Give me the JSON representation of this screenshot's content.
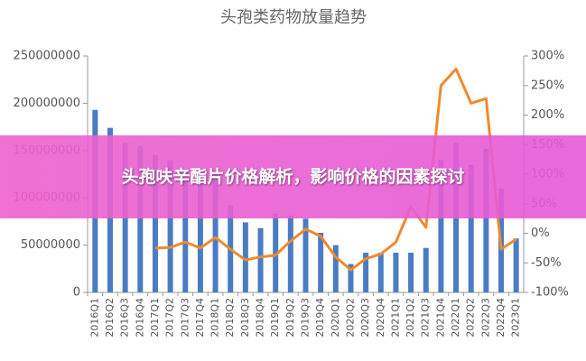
{
  "chart_data": {
    "type": "bar-line",
    "title": "头孢类药物放量趋势",
    "categories": [
      "2016Q1",
      "2016Q2",
      "2016Q3",
      "2016Q4",
      "2017Q1",
      "2017Q2",
      "2017Q3",
      "2017Q4",
      "2018Q1",
      "2018Q2",
      "2018Q3",
      "2018Q4",
      "2019Q1",
      "2019Q2",
      "2019Q3",
      "2019Q4",
      "2020Q1",
      "2020Q2",
      "2020Q3",
      "2020Q4",
      "2021Q1",
      "2021Q2",
      "2021Q3",
      "2021Q4",
      "2022Q1",
      "2022Q2",
      "2022Q3",
      "2022Q4",
      "2023Q1"
    ],
    "series": [
      {
        "type": "bar",
        "color": "#4a7cc4",
        "values": [
          193000000,
          174000000,
          158000000,
          155000000,
          145000000,
          140000000,
          130000000,
          120000000,
          130000000,
          92000000,
          74000000,
          68000000,
          83000000,
          81000000,
          78000000,
          63000000,
          50000000,
          30000000,
          42000000,
          42000000,
          42000000,
          42000000,
          47000000,
          140000000,
          158000000,
          135000000,
          152000000,
          110000000,
          57000000
        ]
      },
      {
        "type": "line",
        "axis": "y2",
        "color": "#ef8a2e",
        "values": [
          null,
          null,
          null,
          null,
          -25,
          -24,
          -15,
          -25,
          -7,
          -27,
          -45,
          -40,
          -37,
          -13,
          7,
          -5,
          -40,
          -62,
          -43,
          -35,
          -15,
          45,
          10,
          250,
          278,
          220,
          228,
          -27,
          -10
        ]
      }
    ],
    "ylim": [
      0,
      250000000
    ],
    "yticks": [
      0,
      50000000,
      100000000,
      150000000,
      200000000,
      250000000
    ],
    "y2lim": [
      -100,
      300
    ],
    "y2ticks": [
      {
        "value": -100,
        "label": "-100%"
      },
      {
        "value": -50,
        "label": "-50%"
      },
      {
        "value": 0,
        "label": "0%"
      },
      {
        "value": 50,
        "label": "50%"
      },
      {
        "value": 100,
        "label": "100%"
      },
      {
        "value": 150,
        "label": "150%"
      },
      {
        "value": 200,
        "label": "200%"
      },
      {
        "value": 250,
        "label": "250%"
      },
      {
        "value": 300,
        "label": "300%"
      }
    ],
    "grid": false
  },
  "banner": {
    "text": "头孢呋辛酯片价格解析，影响价格的因素探讨"
  }
}
